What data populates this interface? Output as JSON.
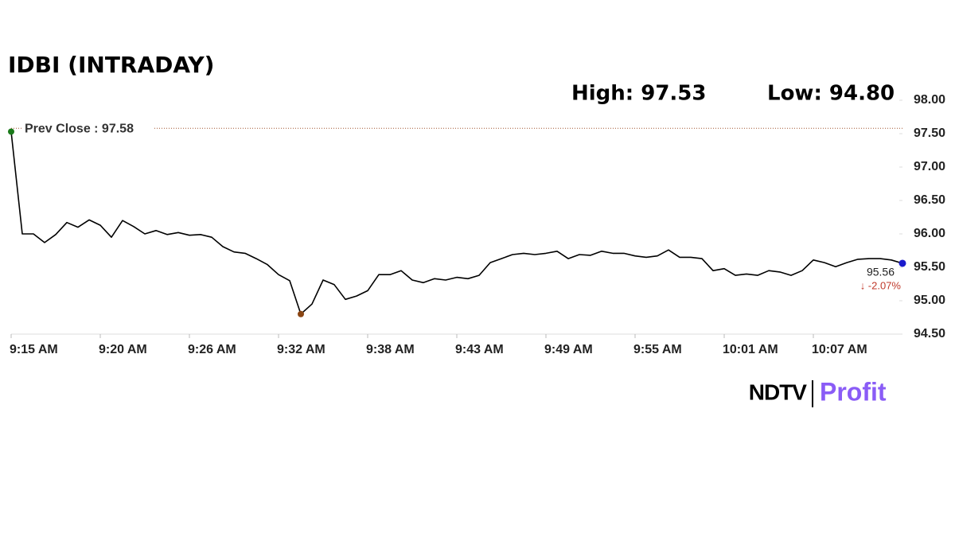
{
  "chart_data": {
    "type": "line",
    "title": "IDBI (INTRADAY)",
    "high_label": "High: 97.53",
    "low_label": "Low: 94.80",
    "reference_line": {
      "value": 97.58,
      "label": "Prev Close : 97.58",
      "color": "#a0522d"
    },
    "change_label": "↓ -2.07%",
    "brand": "NDTV",
    "brand_sub": "Profit",
    "categories": [
      "9:15 AM",
      null,
      null,
      null,
      null,
      null,
      null,
      null,
      "9:20 AM",
      null,
      null,
      null,
      null,
      null,
      null,
      null,
      "9:26 AM",
      null,
      null,
      null,
      null,
      null,
      null,
      null,
      "9:32 AM",
      null,
      null,
      null,
      null,
      null,
      null,
      null,
      "9:38 AM",
      null,
      null,
      null,
      null,
      null,
      null,
      null,
      "9:43 AM",
      null,
      null,
      null,
      null,
      null,
      null,
      null,
      "9:49 AM",
      null,
      null,
      null,
      null,
      null,
      null,
      null,
      "9:55 AM",
      null,
      null,
      null,
      null,
      null,
      null,
      null,
      "10:01 AM",
      null,
      null,
      null,
      null,
      null,
      null,
      null,
      "10:07 AM",
      null,
      null,
      null,
      null,
      null,
      null,
      null,
      null
    ],
    "series": [
      {
        "color": "#000000",
        "values": [
          97.53,
          96.0,
          96.0,
          95.87,
          95.99,
          96.17,
          96.1,
          96.21,
          96.13,
          95.95,
          96.2,
          96.11,
          96.0,
          96.05,
          95.99,
          96.02,
          95.98,
          95.99,
          95.95,
          95.81,
          95.73,
          95.71,
          95.63,
          95.54,
          95.39,
          95.3,
          94.8,
          94.95,
          95.31,
          95.24,
          95.02,
          95.07,
          95.15,
          95.39,
          95.39,
          95.45,
          95.31,
          95.27,
          95.33,
          95.31,
          95.35,
          95.33,
          95.38,
          95.57,
          95.63,
          95.69,
          95.71,
          95.69,
          95.71,
          95.74,
          95.63,
          95.69,
          95.68,
          95.74,
          95.71,
          95.71,
          95.67,
          95.65,
          95.67,
          95.76,
          95.65,
          95.65,
          95.63,
          95.45,
          95.48,
          95.38,
          95.4,
          95.38,
          95.45,
          95.43,
          95.38,
          95.45,
          95.61,
          95.57,
          95.51,
          95.57,
          95.62,
          95.63,
          95.63,
          95.61,
          95.56
        ]
      }
    ],
    "markers": {
      "start_color": "#1a7a1a",
      "low_color": "#8b4513",
      "end_color": "#1a1acc",
      "low_index": 26
    },
    "ylim": [
      94.5,
      98.0
    ],
    "yticks": [
      {
        "value": 94.5,
        "label": "94.50"
      },
      {
        "value": 95.0,
        "label": "95.00"
      },
      {
        "value": 95.5,
        "label": "95.50"
      },
      {
        "value": 96.0,
        "label": "96.00"
      },
      {
        "value": 96.5,
        "label": "96.50"
      },
      {
        "value": 97.0,
        "label": "97.00"
      },
      {
        "value": 97.5,
        "label": "97.50"
      },
      {
        "value": 98.0,
        "label": "98.00"
      }
    ],
    "grid": false
  }
}
